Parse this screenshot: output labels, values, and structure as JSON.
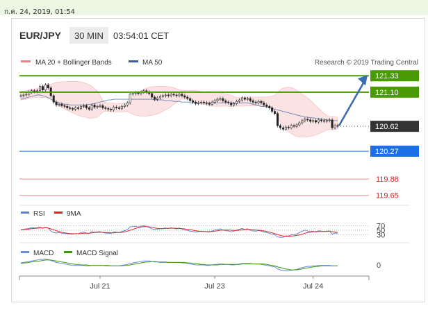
{
  "page": {
    "timestamp": "ก.ค. 24, 2019, 01:54"
  },
  "header": {
    "symbol": "EUR/JPY",
    "interval": "30 MIN",
    "time": "03:54:01 CET"
  },
  "colors": {
    "ma20": "#f08080",
    "ma50": "#3b5ba5",
    "target": "#4a9a06",
    "current": "#333333",
    "support_primary": "#1a6fe8",
    "support": "#cc2222",
    "rsi": "#5b7fcf",
    "rsi_ma": "#e02020",
    "macd": "#6a8fd8",
    "macd_signal": "#3a9a0a",
    "arrow": "#3b6bb0"
  },
  "legend": {
    "ma20": "MA 20 + Bollinger Bands",
    "ma50": "MA 50"
  },
  "credit": "Research © 2019 Trading Central",
  "chart_data": {
    "type": "candlestick",
    "price_levels": [
      {
        "name": "target-2",
        "value": "121.33",
        "role": "target"
      },
      {
        "name": "target-1",
        "value": "121.10",
        "role": "target"
      },
      {
        "name": "current",
        "value": "120.62",
        "role": "current"
      },
      {
        "name": "support-1",
        "value": "120.27",
        "role": "support_primary"
      },
      {
        "name": "support-2",
        "value": "119.88",
        "role": "support"
      },
      {
        "name": "support-3",
        "value": "119.65",
        "role": "support"
      }
    ],
    "price_range": [
      119.55,
      121.42
    ],
    "x_labels": [
      "Jul 21",
      "Jul 23",
      "Jul 24"
    ],
    "x_label_index": [
      29,
      71,
      107
    ],
    "closes": [
      121.05,
      121.06,
      121.07,
      121.1,
      121.12,
      121.11,
      121.12,
      121.18,
      121.13,
      121.2,
      121.16,
      121.05,
      120.96,
      120.92,
      120.93,
      120.91,
      120.9,
      120.88,
      120.87,
      120.86,
      120.88,
      120.87,
      120.9,
      120.91,
      120.88,
      120.86,
      120.92,
      120.89,
      120.9,
      120.91,
      120.88,
      120.87,
      120.86,
      120.85,
      120.89,
      120.88,
      120.87,
      120.9,
      120.92,
      120.95,
      121.07,
      121.08,
      121.09,
      121.08,
      121.1,
      121.12,
      121.1,
      121.08,
      121.03,
      121.0,
      121.02,
      121.04,
      121.05,
      121.06,
      121.05,
      121.07,
      121.06,
      121.05,
      121.07,
      121.05,
      121.03,
      121.01,
      120.98,
      120.96,
      120.94,
      120.95,
      120.96,
      120.95,
      120.94,
      120.93,
      120.96,
      120.98,
      121.0,
      121.01,
      120.98,
      120.96,
      120.95,
      120.92,
      120.94,
      120.97,
      120.99,
      121.02,
      121.0,
      121.01,
      120.98,
      120.96,
      120.95,
      120.97,
      120.95,
      120.92,
      120.9,
      120.88,
      120.83,
      120.8,
      120.63,
      120.6,
      120.58,
      120.61,
      120.6,
      120.63,
      120.62,
      120.64,
      120.67,
      120.7,
      120.72,
      120.71,
      120.69,
      120.7,
      120.68,
      120.71,
      120.7,
      120.69,
      120.7,
      120.71,
      120.6,
      120.63,
      120.62
    ],
    "ma50": [
      121.0,
      121.01,
      121.02,
      121.03,
      121.04,
      121.05,
      121.06,
      121.06,
      121.05,
      121.04,
      121.02,
      121.0,
      120.98,
      120.96,
      120.95,
      120.94,
      120.93,
      120.93,
      120.92,
      120.92,
      120.92,
      120.92,
      120.92,
      120.92,
      120.92,
      120.93,
      120.93,
      120.94,
      120.95,
      120.96,
      120.97,
      120.98,
      120.99,
      120.99,
      121.0,
      121.0,
      121.0,
      121.0,
      121.0,
      121.0,
      121.0,
      121.0,
      121.0,
      121.0,
      121.0,
      121.0,
      121.0,
      121.0,
      121.0,
      120.99,
      120.99,
      120.99,
      120.99,
      120.98,
      120.98,
      120.98,
      120.97,
      120.97,
      120.97,
      120.96,
      120.96,
      120.96,
      120.95,
      120.95,
      120.95,
      120.95,
      120.95,
      120.95,
      120.95,
      120.95,
      120.95,
      120.95,
      120.95,
      120.95,
      120.95,
      120.95,
      120.95,
      120.95,
      120.95,
      120.95,
      120.95,
      120.95,
      120.95,
      120.95,
      120.94,
      120.93,
      120.92,
      120.91,
      120.9,
      120.9,
      120.89,
      120.88,
      120.87,
      120.86,
      120.85,
      120.84,
      120.83,
      120.82,
      120.81,
      120.8,
      120.79,
      120.78,
      120.77,
      120.76,
      120.75,
      120.75,
      120.74,
      120.74,
      120.73,
      120.73,
      120.72,
      120.72,
      120.71,
      120.71,
      120.7,
      120.7,
      120.7
    ],
    "rsi": {
      "ticks": [
        "70",
        "50",
        "30"
      ],
      "values": [
        53,
        54,
        56,
        58,
        62,
        60,
        61,
        64,
        58,
        63,
        60,
        46,
        40,
        38,
        40,
        37,
        36,
        35,
        34,
        33,
        36,
        35,
        40,
        42,
        38,
        36,
        45,
        41,
        43,
        44,
        40,
        38,
        37,
        36,
        43,
        42,
        40,
        45,
        48,
        53,
        65,
        66,
        67,
        64,
        68,
        70,
        66,
        62,
        56,
        52,
        55,
        57,
        58,
        60,
        57,
        61,
        58,
        56,
        60,
        55,
        51,
        49,
        46,
        44,
        42,
        44,
        46,
        45,
        43,
        42,
        47,
        51,
        54,
        56,
        51,
        48,
        47,
        43,
        46,
        51,
        54,
        58,
        54,
        56,
        50,
        47,
        46,
        49,
        46,
        42,
        40,
        37,
        33,
        30,
        21,
        20,
        19,
        26,
        25,
        31,
        30,
        34,
        40,
        46,
        50,
        47,
        44,
        46,
        42,
        48,
        46,
        44,
        46,
        47,
        33,
        38,
        37
      ],
      "ma": [
        52,
        53,
        54,
        55,
        57,
        58,
        59,
        60,
        60,
        61,
        60,
        56,
        52,
        48,
        44,
        41,
        39,
        37,
        36,
        35,
        35,
        35,
        36,
        37,
        37,
        37,
        39,
        40,
        41,
        42,
        41,
        40,
        40,
        39,
        39,
        40,
        40,
        41,
        43,
        46,
        50,
        54,
        58,
        61,
        64,
        66,
        66,
        65,
        63,
        60,
        58,
        57,
        57,
        58,
        58,
        59,
        59,
        58,
        58,
        57,
        56,
        54,
        52,
        50,
        48,
        46,
        45,
        45,
        44,
        44,
        45,
        46,
        48,
        50,
        51,
        51,
        51,
        50,
        49,
        49,
        50,
        52,
        53,
        54,
        53,
        52,
        51,
        50,
        49,
        47,
        45,
        42,
        39,
        35,
        31,
        28,
        25,
        24,
        24,
        25,
        26,
        28,
        30,
        33,
        37,
        40,
        42,
        44,
        44,
        45,
        45,
        45,
        45,
        46,
        43,
        42,
        41
      ]
    },
    "macd": {
      "ticks": [
        "0"
      ],
      "values": [
        0.04,
        0.05,
        0.06,
        0.07,
        0.08,
        0.09,
        0.1,
        0.11,
        0.11,
        0.12,
        0.11,
        0.09,
        0.07,
        0.05,
        0.04,
        0.03,
        0.02,
        0.01,
        0.0,
        -0.01,
        -0.01,
        -0.01,
        -0.01,
        -0.01,
        -0.02,
        -0.02,
        -0.01,
        -0.01,
        -0.01,
        -0.01,
        -0.01,
        -0.02,
        -0.02,
        -0.02,
        -0.02,
        -0.02,
        -0.02,
        -0.01,
        0.0,
        0.01,
        0.03,
        0.04,
        0.05,
        0.06,
        0.07,
        0.08,
        0.08,
        0.08,
        0.07,
        0.06,
        0.06,
        0.05,
        0.05,
        0.05,
        0.05,
        0.05,
        0.05,
        0.05,
        0.05,
        0.04,
        0.04,
        0.03,
        0.02,
        0.01,
        0.0,
        0.0,
        0.0,
        0.0,
        -0.01,
        -0.01,
        0.0,
        0.01,
        0.01,
        0.02,
        0.02,
        0.01,
        0.01,
        0.0,
        0.0,
        0.01,
        0.02,
        0.03,
        0.03,
        0.03,
        0.03,
        0.02,
        0.02,
        0.02,
        0.01,
        0.0,
        -0.01,
        -0.02,
        -0.03,
        -0.04,
        -0.08,
        -0.1,
        -0.12,
        -0.12,
        -0.12,
        -0.11,
        -0.1,
        -0.09,
        -0.07,
        -0.05,
        -0.04,
        -0.03,
        -0.03,
        -0.02,
        -0.02,
        -0.01,
        -0.01,
        -0.01,
        -0.01,
        -0.01,
        -0.02,
        -0.02,
        -0.02
      ],
      "signal": [
        0.03,
        0.04,
        0.04,
        0.05,
        0.06,
        0.07,
        0.07,
        0.08,
        0.09,
        0.1,
        0.1,
        0.1,
        0.09,
        0.08,
        0.07,
        0.06,
        0.05,
        0.04,
        0.03,
        0.02,
        0.01,
        0.01,
        0.0,
        0.0,
        0.0,
        -0.01,
        -0.01,
        -0.01,
        -0.01,
        -0.01,
        -0.01,
        -0.01,
        -0.01,
        -0.02,
        -0.02,
        -0.02,
        -0.02,
        -0.02,
        -0.01,
        -0.01,
        0.0,
        0.01,
        0.02,
        0.03,
        0.04,
        0.05,
        0.06,
        0.06,
        0.07,
        0.07,
        0.06,
        0.06,
        0.06,
        0.06,
        0.05,
        0.05,
        0.05,
        0.05,
        0.05,
        0.05,
        0.05,
        0.04,
        0.04,
        0.03,
        0.03,
        0.02,
        0.01,
        0.01,
        0.0,
        0.0,
        0.0,
        0.0,
        0.0,
        0.01,
        0.01,
        0.01,
        0.01,
        0.01,
        0.01,
        0.01,
        0.01,
        0.02,
        0.02,
        0.02,
        0.02,
        0.02,
        0.02,
        0.02,
        0.02,
        0.02,
        0.01,
        0.0,
        -0.01,
        -0.02,
        -0.04,
        -0.05,
        -0.07,
        -0.08,
        -0.09,
        -0.1,
        -0.1,
        -0.1,
        -0.09,
        -0.08,
        -0.07,
        -0.06,
        -0.05,
        -0.04,
        -0.03,
        -0.03,
        -0.02,
        -0.02,
        -0.02,
        -0.02,
        -0.02,
        -0.02,
        -0.02
      ]
    },
    "indicator_legends": {
      "rsi": "RSI",
      "rsi_ma": "9MA",
      "macd": "MACD",
      "macd_signal": "MACD Signal"
    }
  }
}
